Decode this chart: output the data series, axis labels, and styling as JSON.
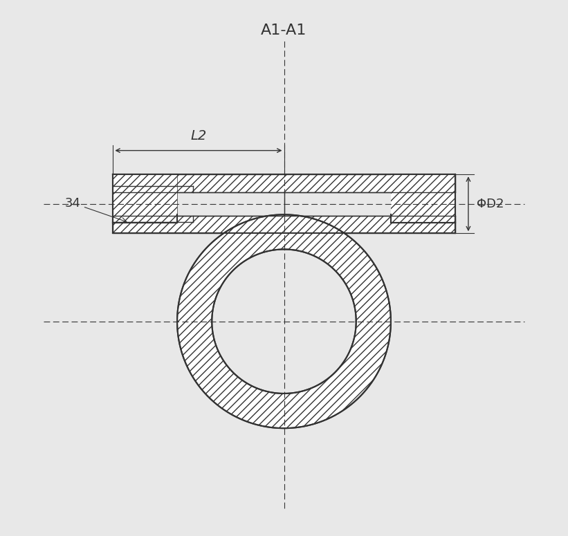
{
  "title": "A1-A1",
  "background_color": "#e8e8e8",
  "hatch_color": "#555555",
  "line_color": "#333333",
  "label_34": "34",
  "label_L2": "L2",
  "label_phiD2": "ΦD2",
  "figsize": [
    8.21,
    7.75
  ],
  "dpi": 100
}
